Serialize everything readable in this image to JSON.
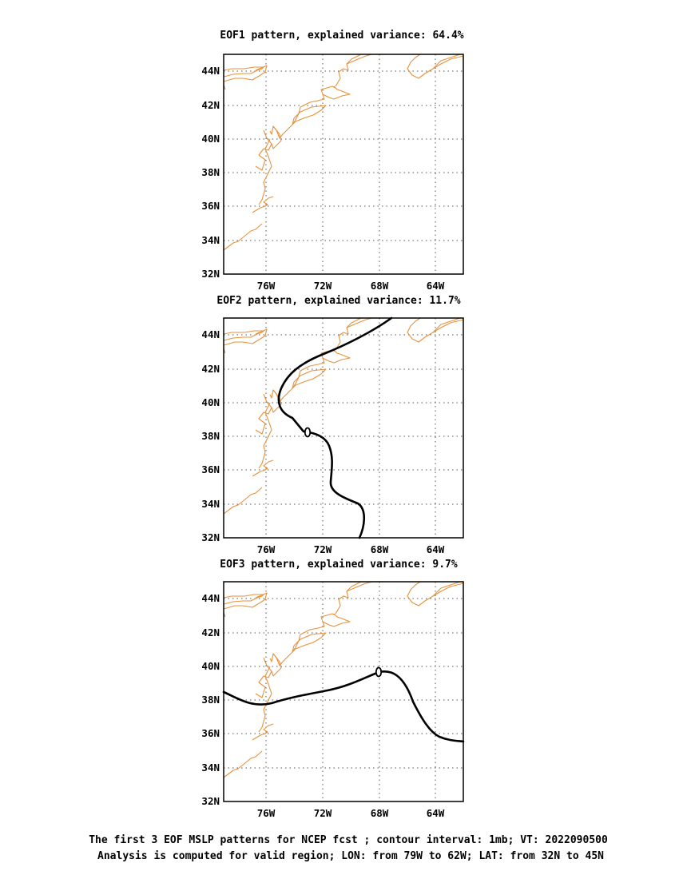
{
  "panels": [
    {
      "title": "EOF1 pattern, explained variance: 64.4%",
      "contour_label": ""
    },
    {
      "title": "EOF2 pattern, explained variance: 11.7%",
      "contour_label": "0"
    },
    {
      "title": "EOF3 pattern, explained variance: 9.7%",
      "contour_label": "0"
    }
  ],
  "lat_ticks": [
    "32N",
    "34N",
    "36N",
    "38N",
    "40N",
    "42N",
    "44N"
  ],
  "lon_ticks": [
    "76W",
    "72W",
    "68W",
    "64W"
  ],
  "caption": {
    "line1": "The first 3 EOF MSLP patterns for NCEP fcst ; contour interval: 1mb; VT: 2022090500",
    "line2": "Analysis is computed for valid region; LON: from 79W to 62W; LAT: from 32N to 45N"
  },
  "colors": {
    "coastline": "#e8913a",
    "contour": "#000000",
    "grid": "#555555"
  }
}
